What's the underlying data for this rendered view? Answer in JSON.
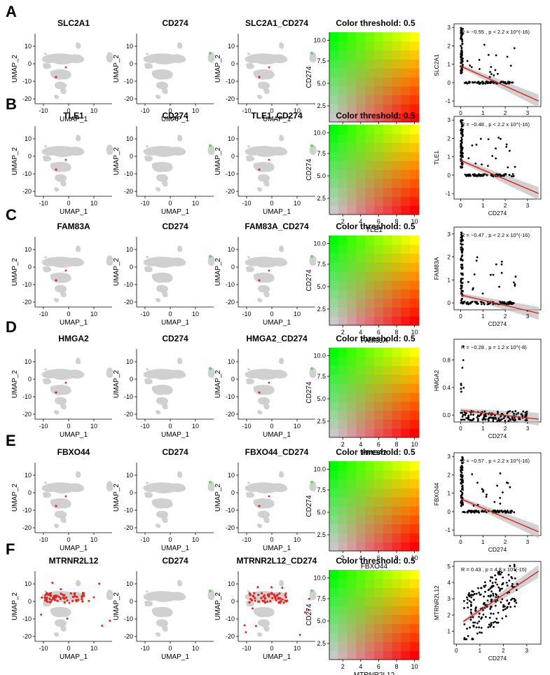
{
  "figure": {
    "threshold_title": "Color threshold: 0.5",
    "umap_xlabel": "UMAP_1",
    "umap_ylabel": "UMAP_2",
    "umap_xticks": [
      "-10",
      "0",
      "10"
    ],
    "umap_yticks": [
      "10",
      "0",
      "-10",
      "-20"
    ],
    "heat_ticks": [
      "2",
      "4",
      "6",
      "8",
      "10"
    ],
    "heat_yticks": [
      "10.0",
      "7.5",
      "5.0",
      "2.5"
    ],
    "colors": {
      "cell": "#d0d0d0",
      "gene": "#e8221c",
      "cd274": "#6fd36f",
      "fit": "#e0201a",
      "band": "#bdbdbd",
      "heat_low": "#c8c8c8",
      "heat_red": "#ff0000",
      "heat_green": "#00ff00",
      "heat_yellow": "#ffff00"
    }
  },
  "chart_data": [
    {
      "panel": "A",
      "gene": "SLC2A1",
      "overlay": "SLC2A1_CD274",
      "type": "scatter",
      "xlabel": "CD274",
      "ylabel": "SLC2A1",
      "stat": "R = −0.55 , p < 2.2 x 10^(-16)",
      "xlim": [
        -0.3,
        3.6
      ],
      "ylim": [
        -1.3,
        3.2
      ],
      "xticks": [
        "0",
        "1",
        "2",
        "3"
      ],
      "yticks": [
        "3",
        "2",
        "1",
        "0",
        "-1"
      ],
      "fit": [
        [
          0,
          0.9
        ],
        [
          3.5,
          -1.0
        ]
      ],
      "pattern": "l",
      "gene_spots": "few"
    },
    {
      "panel": "B",
      "gene": "TLE1",
      "overlay": "TLE1_CD274",
      "type": "scatter",
      "xlabel": "CD274",
      "ylabel": "TLE1",
      "stat": "R = −0.48 , p < 2.2 x 10^(-16)",
      "xlim": [
        -0.3,
        3.6
      ],
      "ylim": [
        -1.3,
        3.2
      ],
      "xticks": [
        "0",
        "1",
        "2",
        "3"
      ],
      "yticks": [
        "3",
        "2",
        "1",
        "0",
        "-1"
      ],
      "fit": [
        [
          0,
          0.8
        ],
        [
          3.5,
          -1.0
        ]
      ],
      "pattern": "l",
      "gene_spots": "few"
    },
    {
      "panel": "C",
      "gene": "FAM83A",
      "overlay": "FAM83A_CD274",
      "type": "scatter",
      "xlabel": "CD274",
      "ylabel": "FAM83A",
      "stat": "R = −0.47 , p < 2.2 x 10^(-16)",
      "xlim": [
        -0.3,
        3.6
      ],
      "ylim": [
        -0.3,
        3.3
      ],
      "xticks": [
        "0",
        "1",
        "2",
        "3"
      ],
      "yticks": [
        "3",
        "2",
        "1",
        "0"
      ],
      "fit": [
        [
          0,
          0.35
        ],
        [
          3.5,
          -0.45
        ]
      ],
      "pattern": "l",
      "gene_spots": "few"
    },
    {
      "panel": "D",
      "gene": "HMGA2",
      "overlay": "HMGA2_CD274",
      "type": "scatter",
      "xlabel": "CD274",
      "ylabel": "HMGA2",
      "stat": "R = −0.28 , p = 1.2 x 10^(-8)",
      "xlim": [
        -0.3,
        3.6
      ],
      "ylim": [
        -0.1,
        1.1
      ],
      "xticks": [
        "0",
        "1",
        "2",
        "3"
      ],
      "yticks": [
        "0.8",
        "0.4",
        "0.0"
      ],
      "fit": [
        [
          0,
          0.07
        ],
        [
          3.5,
          -0.06
        ]
      ],
      "pattern": "band",
      "gene_spots": "few"
    },
    {
      "panel": "E",
      "gene": "FBXO44",
      "overlay": "FBXO44_CD274",
      "type": "scatter",
      "xlabel": "CD274",
      "ylabel": "FBXO44",
      "stat": "R = −0.57 , p < 2.2 x 10^(-16)",
      "xlim": [
        -0.3,
        3.6
      ],
      "ylim": [
        -1.3,
        3.2
      ],
      "xticks": [
        "0",
        "1",
        "2",
        "3"
      ],
      "yticks": [
        "3",
        "2",
        "1",
        "0",
        "-1"
      ],
      "fit": [
        [
          0,
          0.7
        ],
        [
          3.5,
          -1.1
        ]
      ],
      "pattern": "l",
      "gene_spots": "few"
    },
    {
      "panel": "F",
      "gene": "MTRNR2L12",
      "overlay": "MTRNR2L12_CD274",
      "type": "scatter",
      "xlabel": "CD274",
      "ylabel": "MTRNR2L12",
      "stat": "R = 0.43 , p = 4.8 x 10^(-15)",
      "xlim": [
        -0.1,
        3.6
      ],
      "ylim": [
        0.2,
        5.3
      ],
      "xticks": [
        "0",
        "1",
        "2",
        "3"
      ],
      "yticks": [
        "5",
        "4",
        "3",
        "2",
        "1"
      ],
      "fit": [
        [
          0.3,
          1.6
        ],
        [
          3.5,
          4.7
        ]
      ],
      "pattern": "cloud",
      "gene_spots": "many"
    }
  ]
}
